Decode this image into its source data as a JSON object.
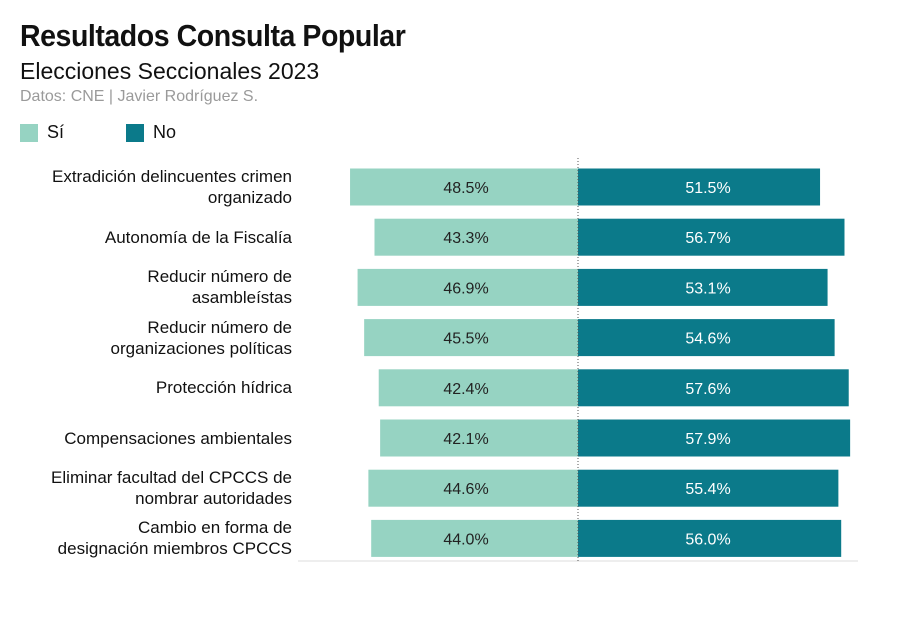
{
  "title": "Resultados Consulta Popular",
  "subtitle": "Elecciones Seccionales 2023",
  "source": "Datos: CNE | Javier Rodríguez S.",
  "colors": {
    "si": "#96d3c2",
    "no": "#0b7a8a",
    "no_text": "#ffffff",
    "si_text": "#222222"
  },
  "chart_data": {
    "type": "bar",
    "orientation": "horizontal-diverging",
    "title": "Resultados Consulta Popular",
    "subtitle": "Elecciones Seccionales 2023",
    "legend_position": "top-left",
    "categories": [
      "Extradición delincuentes crimen organizado",
      "Autonomía de la Fiscalía",
      "Reducir número de asambleístas",
      "Reducir número de organizaciones políticas",
      "Protección hídrica",
      "Compensaciones ambientales",
      "Eliminar facultad del CPCCS de nombrar autoridades",
      "Cambio en forma de designación miembros CPCCS"
    ],
    "category_lines": [
      [
        "Extradición delincuentes crimen",
        "organizado"
      ],
      [
        "Autonomía de la Fiscalía"
      ],
      [
        "Reducir número de",
        "asambleístas"
      ],
      [
        "Reducir número de",
        "organizaciones políticas"
      ],
      [
        "Protección hídrica"
      ],
      [
        "Compensaciones ambientales"
      ],
      [
        "Eliminar facultad del CPCCS de",
        "nombrar autoridades"
      ],
      [
        "Cambio en forma de",
        "designación miembros CPCCS"
      ]
    ],
    "series": [
      {
        "name": "Sí",
        "values": [
          48.5,
          43.3,
          46.9,
          45.5,
          42.4,
          42.1,
          44.6,
          44.0
        ],
        "labels": [
          "48.5%",
          "43.3%",
          "46.9%",
          "45.5%",
          "42.4%",
          "42.1%",
          "44.6%",
          "44.0%"
        ]
      },
      {
        "name": "No",
        "values": [
          51.5,
          56.7,
          53.1,
          54.6,
          57.6,
          57.9,
          55.4,
          56.0
        ],
        "labels": [
          "51.5%",
          "56.7%",
          "53.1%",
          "54.6%",
          "57.6%",
          "57.9%",
          "55.4%",
          "56.0%"
        ]
      }
    ],
    "unit": "%"
  }
}
